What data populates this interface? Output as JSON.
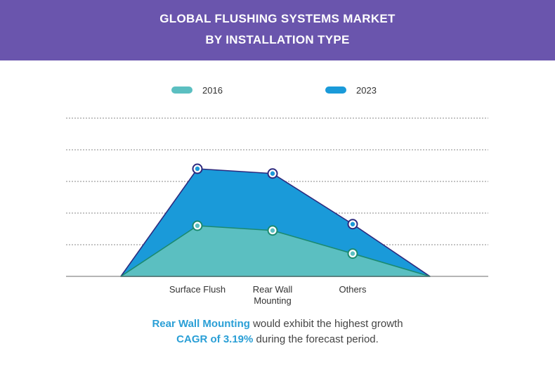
{
  "header": {
    "title_line1": "GLOBAL FLUSHING SYSTEMS MARKET",
    "title_line2": "BY INSTALLATION TYPE"
  },
  "colors": {
    "banner": "#6a55ad",
    "series_2016_fill": "#5bbfc1",
    "series_2016_line": "#1b8a70",
    "series_2023_fill": "#1a9ad9",
    "series_2023_line": "#2d2a7e",
    "highlight_text": "#2a9fd6"
  },
  "legend": [
    {
      "label": "2016",
      "color": "#5bbfc1"
    },
    {
      "label": "2023",
      "color": "#1a9ad9"
    }
  ],
  "chart_data": {
    "type": "area",
    "x": [
      "",
      "Surface Flush",
      "Rear Wall Mounting",
      "Others",
      ""
    ],
    "categories_lines": [
      [],
      [
        "Surface Flush"
      ],
      [
        "Rear Wall",
        "Mounting"
      ],
      [
        "Others"
      ],
      []
    ],
    "ylim": [
      0,
      5
    ],
    "gridlines": [
      1,
      2,
      3,
      4,
      5
    ],
    "series": [
      {
        "name": "2023",
        "values": [
          0,
          3.4,
          3.25,
          1.65,
          0
        ],
        "markers": [
          false,
          true,
          true,
          true,
          false
        ]
      },
      {
        "name": "2016",
        "values": [
          0,
          1.6,
          1.45,
          0.72,
          0
        ],
        "markers": [
          false,
          true,
          true,
          true,
          false
        ]
      }
    ]
  },
  "caption": {
    "line1_highlight": "Rear Wall Mounting",
    "line1_rest": " would exhibit the highest growth",
    "line2_highlight": "CAGR of 3.19%",
    "line2_rest": " during the forecast period."
  }
}
